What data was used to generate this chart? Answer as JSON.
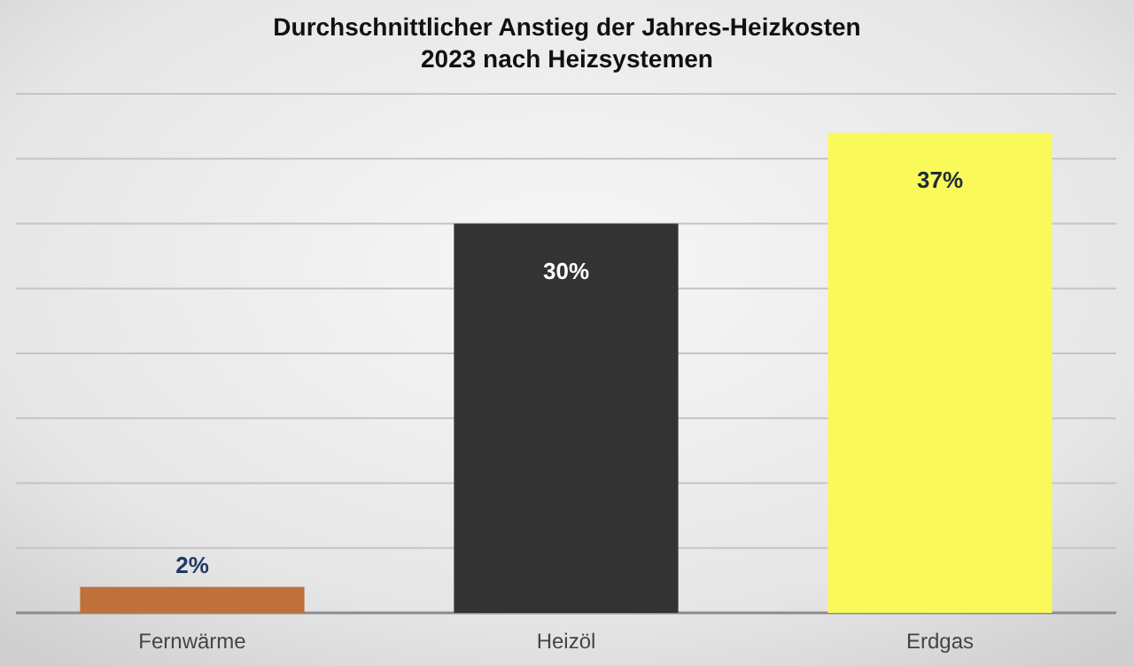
{
  "chart_data": {
    "type": "bar",
    "title": "Durchschnittlicher Anstieg der Jahres-Heizkosten 2023 nach Heizsystemen",
    "categories": [
      "Fernwärme",
      "Heizöl",
      "Erdgas"
    ],
    "values": [
      2,
      30,
      37
    ],
    "colors": [
      "#c0703a",
      "#333333",
      "#f9f95a"
    ],
    "value_labels": [
      "2%",
      "30%",
      "37%"
    ],
    "ylim": [
      0,
      40
    ],
    "yticks": [
      {
        "value": 0,
        "label": null
      },
      {
        "value": 5,
        "label": null
      },
      {
        "value": 10,
        "label": null
      },
      {
        "value": 15,
        "label": null
      },
      {
        "value": 20,
        "label": null
      },
      {
        "value": 25,
        "label": null
      },
      {
        "value": 30,
        "label": null
      },
      {
        "value": 35,
        "label": null
      },
      {
        "value": 40,
        "label": null
      }
    ],
    "tick_labels": "x",
    "grid": "y"
  }
}
